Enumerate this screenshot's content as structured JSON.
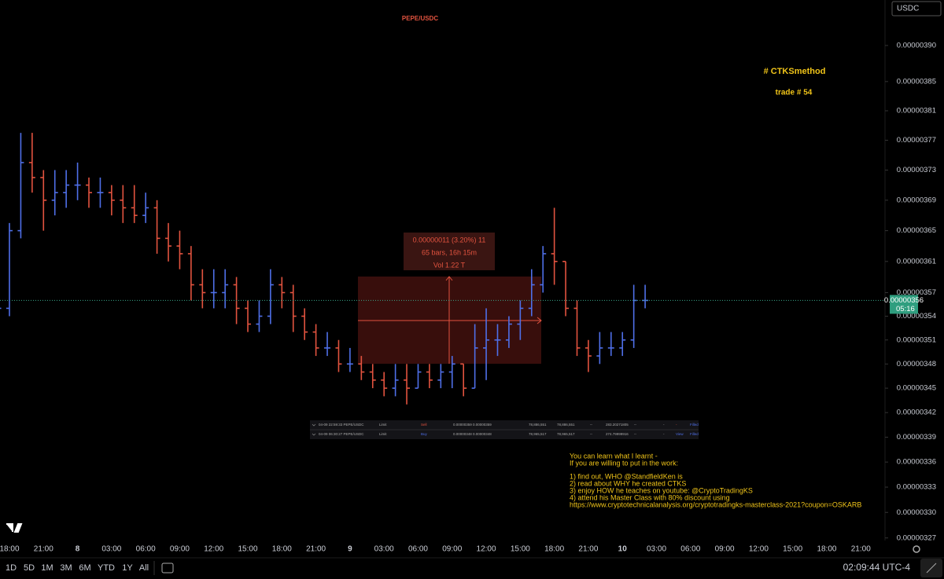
{
  "chart_data": {
    "type": "ohlc",
    "title": "PEPE/USDC",
    "log": true,
    "up_color": "#4f6fe8",
    "down_color": "#e2533f",
    "categories": [
      null,
      "18:00",
      null,
      null,
      "21:00",
      null,
      null,
      "8",
      null,
      null,
      "03:00",
      null,
      null,
      "06:00",
      null,
      null,
      "09:00",
      null,
      null,
      "12:00",
      null,
      null,
      "15:00",
      null,
      null,
      "18:00",
      null,
      null,
      "21:00",
      null,
      null,
      "9",
      null,
      null,
      "03:00",
      null,
      null,
      "06:00",
      null,
      null,
      "09:00",
      null,
      null,
      "12:00",
      null,
      null,
      "15:00",
      null,
      null,
      "18:00",
      null,
      null,
      "21:00",
      null,
      null,
      "10",
      null,
      null,
      "03:00",
      null,
      null,
      "06:00",
      null,
      null,
      "09:00",
      null,
      null,
      "12:00",
      null,
      null,
      "15:00",
      null,
      null,
      "18:00",
      null,
      null,
      "21:00",
      null,
      null
    ],
    "open": [
      3.52e-06,
      3.55e-06,
      3.65e-06,
      3.74e-06,
      3.72e-06,
      3.69e-06,
      3.7e-06,
      3.71e-06,
      3.71e-06,
      3.7e-06,
      3.7e-06,
      3.69e-06,
      3.68e-06,
      3.67e-06,
      3.68e-06,
      3.64e-06,
      3.63e-06,
      3.62e-06,
      3.58e-06,
      3.57e-06,
      3.57e-06,
      3.58e-06,
      3.55e-06,
      3.53e-06,
      3.54e-06,
      3.58e-06,
      3.57e-06,
      3.54e-06,
      3.52e-06,
      3.5e-06,
      3.5e-06,
      3.48e-06,
      3.48e-06,
      3.47e-06,
      3.46e-06,
      3.45e-06,
      3.46e-06,
      3.45e-06,
      3.47e-06,
      3.46e-06,
      3.47e-06,
      3.48e-06,
      3.45e-06,
      3.5e-06,
      3.51e-06,
      3.51e-06,
      3.53e-06,
      3.55e-06,
      3.58e-06,
      3.62e-06,
      3.61e-06,
      3.55e-06,
      3.5e-06,
      3.49e-06,
      3.5e-06,
      3.5e-06,
      3.51e-06,
      3.56e-06,
      null,
      null,
      null,
      null,
      null,
      null,
      null,
      null,
      null,
      null,
      null,
      null,
      null,
      null,
      null,
      null,
      null,
      null,
      null,
      null,
      null
    ],
    "high": [
      3.58e-06,
      3.66e-06,
      3.78e-06,
      3.78e-06,
      3.73e-06,
      3.73e-06,
      3.73e-06,
      3.74e-06,
      3.72e-06,
      3.72e-06,
      3.71e-06,
      3.71e-06,
      3.71e-06,
      3.7e-06,
      3.69e-06,
      3.66e-06,
      3.65e-06,
      3.63e-06,
      3.6e-06,
      3.6e-06,
      3.6e-06,
      3.59e-06,
      3.56e-06,
      3.56e-06,
      3.6e-06,
      3.59e-06,
      3.58e-06,
      3.55e-06,
      3.53e-06,
      3.52e-06,
      3.51e-06,
      3.5e-06,
      3.49e-06,
      3.48e-06,
      3.47e-06,
      3.48e-06,
      3.48e-06,
      3.48e-06,
      3.48e-06,
      3.48e-06,
      3.49e-06,
      3.48e-06,
      3.53e-06,
      3.55e-06,
      3.53e-06,
      3.54e-06,
      3.56e-06,
      3.6e-06,
      3.63e-06,
      3.68e-06,
      3.61e-06,
      3.56e-06,
      3.51e-06,
      3.52e-06,
      3.52e-06,
      3.52e-06,
      3.58e-06,
      3.58e-06,
      null,
      null,
      null,
      null,
      null,
      null,
      null,
      null,
      null,
      null,
      null,
      null,
      null,
      null,
      null,
      null,
      null,
      null,
      null,
      null,
      null
    ],
    "low": [
      3.5e-06,
      3.54e-06,
      3.64e-06,
      3.7e-06,
      3.65e-06,
      3.67e-06,
      3.68e-06,
      3.69e-06,
      3.68e-06,
      3.68e-06,
      3.67e-06,
      3.66e-06,
      3.66e-06,
      3.66e-06,
      3.62e-06,
      3.61e-06,
      3.6e-06,
      3.56e-06,
      3.55e-06,
      3.55e-06,
      3.55e-06,
      3.53e-06,
      3.52e-06,
      3.52e-06,
      3.53e-06,
      3.55e-06,
      3.52e-06,
      3.51e-06,
      3.49e-06,
      3.49e-06,
      3.47e-06,
      3.47e-06,
      3.46e-06,
      3.45e-06,
      3.44e-06,
      3.44e-06,
      3.43e-06,
      3.45e-06,
      3.45e-06,
      3.45e-06,
      3.45e-06,
      3.44e-06,
      3.45e-06,
      3.46e-06,
      3.49e-06,
      3.5e-06,
      3.51e-06,
      3.54e-06,
      3.57e-06,
      3.58e-06,
      3.54e-06,
      3.49e-06,
      3.47e-06,
      3.48e-06,
      3.49e-06,
      3.49e-06,
      3.5e-06,
      3.55e-06,
      null,
      null,
      null,
      null,
      null,
      null,
      null,
      null,
      null,
      null,
      null,
      null,
      null,
      null,
      null,
      null,
      null,
      null,
      null,
      null,
      null
    ],
    "close": [
      3.55e-06,
      3.65e-06,
      3.74e-06,
      3.72e-06,
      3.69e-06,
      3.7e-06,
      3.71e-06,
      3.71e-06,
      3.7e-06,
      3.7e-06,
      3.69e-06,
      3.68e-06,
      3.67e-06,
      3.68e-06,
      3.64e-06,
      3.63e-06,
      3.62e-06,
      3.58e-06,
      3.57e-06,
      3.57e-06,
      3.58e-06,
      3.55e-06,
      3.53e-06,
      3.54e-06,
      3.58e-06,
      3.57e-06,
      3.54e-06,
      3.52e-06,
      3.5e-06,
      3.5e-06,
      3.48e-06,
      3.48e-06,
      3.47e-06,
      3.46e-06,
      3.45e-06,
      3.46e-06,
      3.45e-06,
      3.47e-06,
      3.46e-06,
      3.47e-06,
      3.48e-06,
      3.45e-06,
      3.5e-06,
      3.51e-06,
      3.51e-06,
      3.53e-06,
      3.55e-06,
      3.58e-06,
      3.62e-06,
      3.61e-06,
      3.55e-06,
      3.5e-06,
      3.49e-06,
      3.5e-06,
      3.5e-06,
      3.51e-06,
      3.56e-06,
      3.56e-06,
      null,
      null,
      null,
      null,
      null,
      null,
      null,
      null,
      null,
      null,
      null,
      null,
      null,
      null,
      null,
      null,
      null,
      null,
      null,
      null,
      null
    ],
    "ylim": [
      3.267e-06,
      3.964e-06
    ],
    "yticks": [
      {
        "value": 3.9e-06,
        "label": "0.00000390"
      },
      {
        "value": 3.85e-06,
        "label": "0.00000385"
      },
      {
        "value": 3.81e-06,
        "label": "0.00000381"
      },
      {
        "value": 3.77e-06,
        "label": "0.00000377"
      },
      {
        "value": 3.73e-06,
        "label": "0.00000373"
      },
      {
        "value": 3.69e-06,
        "label": "0.00000369"
      },
      {
        "value": 3.65e-06,
        "label": "0.00000365"
      },
      {
        "value": 3.61e-06,
        "label": "0.00000361"
      },
      {
        "value": 3.57e-06,
        "label": "0.00000357"
      },
      {
        "value": 3.54e-06,
        "label": "0.00000354"
      },
      {
        "value": 3.51e-06,
        "label": "0.00000351"
      },
      {
        "value": 3.48e-06,
        "label": "0.00000348"
      },
      {
        "value": 3.45e-06,
        "label": "0.00000345"
      },
      {
        "value": 3.42e-06,
        "label": "0.00000342"
      },
      {
        "value": 3.39e-06,
        "label": "0.00000339"
      },
      {
        "value": 3.36e-06,
        "label": "0.00000336"
      },
      {
        "value": 3.33e-06,
        "label": "0.00000333"
      },
      {
        "value": 3.3e-06,
        "label": "0.00000330"
      },
      {
        "value": 3.27e-06,
        "label": "0.00000327"
      }
    ],
    "last_price": {
      "value": 3.56e-06,
      "label": "0.00000356"
    },
    "countdown": "05:16",
    "annotations": [
      "# CTKSmethod",
      "trade # 54"
    ],
    "measure": [
      "0.00000011 (3.20%) 11",
      "65 bars, 16h 15m",
      "Vol 1.22 T"
    ]
  },
  "currency": "USDC",
  "orders": {
    "rows": [
      [
        "04-09 22:59:33 PEPE/USDC",
        "Limit",
        "Sell",
        "0.00000359  0.00000359",
        "78,886,551",
        "78,886,551",
        "--",
        "283.20271805",
        "--",
        "-",
        "-",
        "Filled"
      ],
      [
        "04-09 06:30:27 PEPE/USDC",
        "Limit",
        "Buy",
        "0.00000348  0.00000348",
        "78,965,517",
        "78,965,517",
        "--",
        "274.79999916",
        "--",
        "-",
        "View",
        "Filled"
      ]
    ]
  },
  "note": {
    "lines": [
      "You can learn what I learnt -",
      "If you are willing to put in the work:",
      "1) find out, WHO @StandfieldKen is",
      "2) read about WHY he created CTKS",
      "3) enjoy HOW he teaches on youtube: @CryptoTradingKS",
      "4) attend his Master Class with 80% discount using",
      "https://www.cryptotechnicalanalysis.org/cryptotradingks-masterclass-2021?coupon=OSKARB"
    ]
  },
  "toolbar": {
    "ranges": [
      "1D",
      "5D",
      "1M",
      "3M",
      "6M",
      "YTD",
      "1Y",
      "All"
    ],
    "clock": "02:09:44 UTC-4"
  }
}
